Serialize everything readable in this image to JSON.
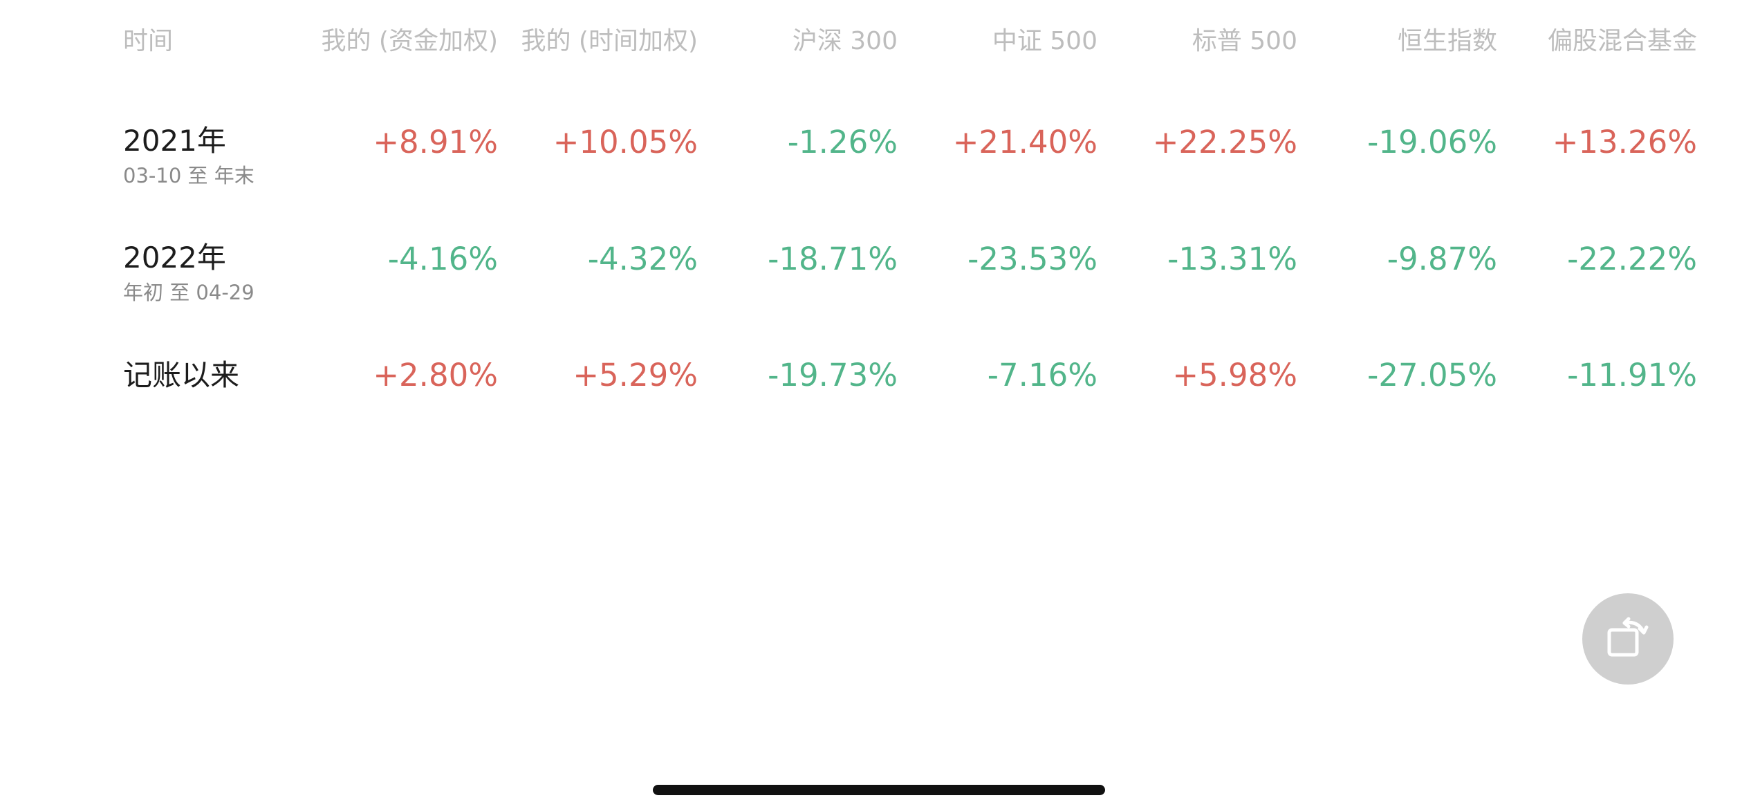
{
  "headers": {
    "time": "时间",
    "mine_money": "我的 (资金加权)",
    "mine_time": "我的 (时间加权)",
    "hs300": "沪深 300",
    "zz500": "中证 500",
    "sp500": "标普 500",
    "hsi": "恒生指数",
    "mixed_fund": "偏股混合基金"
  },
  "rows": [
    {
      "period": "2021年",
      "range": "03-10 至 年末",
      "values": [
        "+8.91%",
        "+10.05%",
        "-1.26%",
        "+21.40%",
        "+22.25%",
        "-19.06%",
        "+13.26%"
      ]
    },
    {
      "period": "2022年",
      "range": "年初 至 04-29",
      "values": [
        "-4.16%",
        "-4.32%",
        "-18.71%",
        "-23.53%",
        "-13.31%",
        "-9.87%",
        "-22.22%"
      ]
    },
    {
      "period": "记账以来",
      "range": "",
      "values": [
        "+2.80%",
        "+5.29%",
        "-19.73%",
        "-7.16%",
        "+5.98%",
        "-27.05%",
        "-11.91%"
      ]
    }
  ],
  "colors": {
    "positive": "#d9645a",
    "negative": "#52b58a",
    "header": "#bdbdbd"
  },
  "icons": {
    "rotate_button": "rotate-screen-icon"
  }
}
